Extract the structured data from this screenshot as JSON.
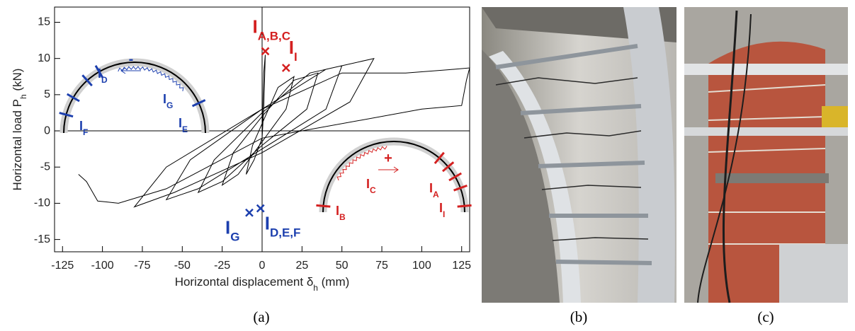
{
  "chart_data": {
    "type": "line",
    "xlabel": {
      "pre": "Horizontal displacement δ",
      "sub": "h",
      "post": " (mm)"
    },
    "ylabel": {
      "pre": "Horizontal load P",
      "sub": "h",
      "post": " (kN)"
    },
    "x": [
      0,
      1,
      2,
      1,
      0,
      -5,
      -10,
      -6,
      0,
      10,
      20,
      15,
      0,
      -15,
      -25,
      -18,
      0,
      20,
      35,
      28,
      0,
      -25,
      -40,
      -30,
      0,
      30,
      50,
      40,
      0,
      -40,
      -60,
      -45,
      0,
      40,
      70,
      55,
      0,
      -55,
      -80,
      -60,
      0,
      50,
      90,
      120,
      130,
      128,
      125,
      100,
      0,
      -60,
      -90,
      -98,
      -103,
      -110,
      -115
    ],
    "values": [
      0,
      8,
      10.5,
      3,
      -1,
      -4,
      -6,
      -2,
      1,
      6,
      7.5,
      3,
      -1.5,
      -6,
      -7.5,
      -3,
      2,
      7,
      8,
      3,
      -2,
      -7,
      -8.5,
      -4,
      2.5,
      8,
      9,
      3,
      -2.5,
      -8,
      -9.5,
      -4,
      3,
      8.5,
      10,
      4,
      -3,
      -8.5,
      -10.5,
      -5,
      3,
      8,
      8,
      8.5,
      8.7,
      7,
      3.5,
      3,
      -1,
      -8,
      -10,
      -9.8,
      -9.7,
      -7,
      -6
    ],
    "color": "#000000",
    "xlim": [
      -130,
      130
    ],
    "ylim": [
      -16.7,
      17.1
    ],
    "xticks": [
      -125,
      -100,
      -75,
      -50,
      -25,
      0,
      25,
      50,
      75,
      100,
      125
    ],
    "yticks": [
      -15,
      -10,
      -5,
      0,
      5,
      10,
      15
    ],
    "annotations": [
      {
        "main": "I",
        "sub": "A,B,C",
        "x": 2,
        "y": 11,
        "color": "#d42020"
      },
      {
        "main": "I",
        "sub": "I",
        "x": 15,
        "y": 8.7,
        "color": "#d42020"
      },
      {
        "main": "I",
        "sub": "G",
        "x": -8,
        "y": -11.3,
        "color": "#1c3fae"
      },
      {
        "main": "I",
        "sub": "D,E,F",
        "x": -1,
        "y": -10.7,
        "color": "#1c3fae"
      }
    ],
    "insets": [
      {
        "sign": "-",
        "color": "#1c3fae",
        "labels": [
          {
            "main": "I",
            "sub": "F"
          },
          {
            "main": "I",
            "sub": "D"
          },
          {
            "main": "I",
            "sub": "G"
          },
          {
            "main": "I",
            "sub": "E"
          }
        ]
      },
      {
        "sign": "+",
        "color": "#d42020",
        "labels": [
          {
            "main": "I",
            "sub": "C"
          },
          {
            "main": "I",
            "sub": "B"
          },
          {
            "main": "I",
            "sub": "A"
          },
          {
            "main": "I",
            "sub": "I"
          }
        ]
      }
    ]
  },
  "captions": [
    "(a)",
    "(b)",
    "(c)"
  ]
}
